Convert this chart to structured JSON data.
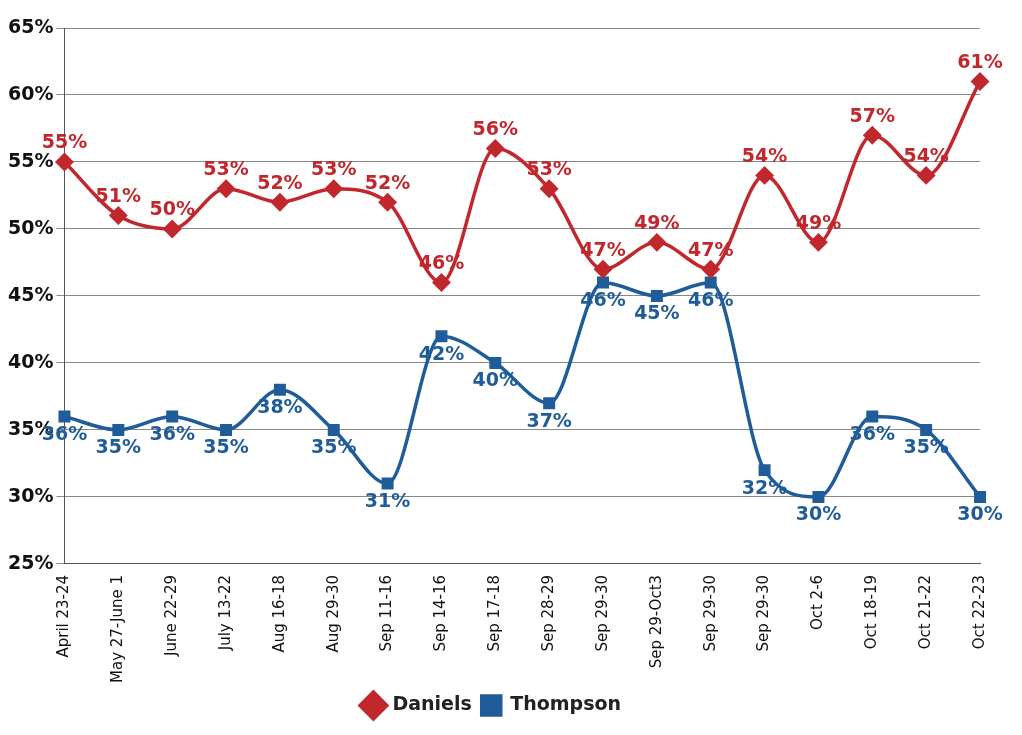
{
  "chart_data": {
    "type": "line",
    "categories": [
      "April 23-24",
      "May 27-June 1",
      "June 22-29",
      "July 13-22",
      "Aug 16-18",
      "Aug 29-30",
      "Sep 11-16",
      "Sep 14-16",
      "Sep 17-18",
      "Sep 28-29",
      "Sep 29-30",
      "Sep 29-Oct3",
      "Sep 29-30",
      "Sep 29-30",
      "Oct 2-6",
      "Oct 18-19",
      "Oct 21-22",
      "Oct 22-23"
    ],
    "series": [
      {
        "name": "Daniels",
        "color": "#c0282d",
        "marker": "diamond",
        "values": [
          55,
          51,
          50,
          53,
          52,
          53,
          52,
          46,
          56,
          53,
          47,
          49,
          47,
          54,
          49,
          57,
          54,
          61
        ],
        "value_labels": [
          "55%",
          "51%",
          "50%",
          "53%",
          "52%",
          "53%",
          "52%",
          "46%",
          "56%",
          "53%",
          "47%",
          "49%",
          "47%",
          "54%",
          "49%",
          "57%",
          "54%",
          "61%"
        ]
      },
      {
        "name": "Thompson",
        "color": "#1f5c99",
        "marker": "square",
        "values": [
          36,
          35,
          36,
          35,
          38,
          35,
          31,
          42,
          40,
          37,
          46,
          45,
          46,
          32,
          30,
          36,
          35,
          30
        ],
        "value_labels": [
          "36%",
          "35%",
          "36%",
          "35%",
          "38%",
          "35%",
          "31%",
          "42%",
          "40%",
          "37%",
          "46%",
          "45%",
          "46%",
          "32%",
          "30%",
          "36%",
          "35%",
          "30%"
        ]
      }
    ],
    "ylim": [
      25,
      65
    ],
    "yticks": [
      {
        "value": 25,
        "label": "25%"
      },
      {
        "value": 30,
        "label": "30%"
      },
      {
        "value": 35,
        "label": "35%"
      },
      {
        "value": 40,
        "label": "40%"
      },
      {
        "value": 45,
        "label": "45%"
      },
      {
        "value": 50,
        "label": "50%"
      },
      {
        "value": 55,
        "label": "55%"
      },
      {
        "value": 60,
        "label": "60%"
      },
      {
        "value": 65,
        "label": "65%"
      }
    ],
    "grid": "y",
    "legend": "bottom",
    "line_style": "solid"
  }
}
